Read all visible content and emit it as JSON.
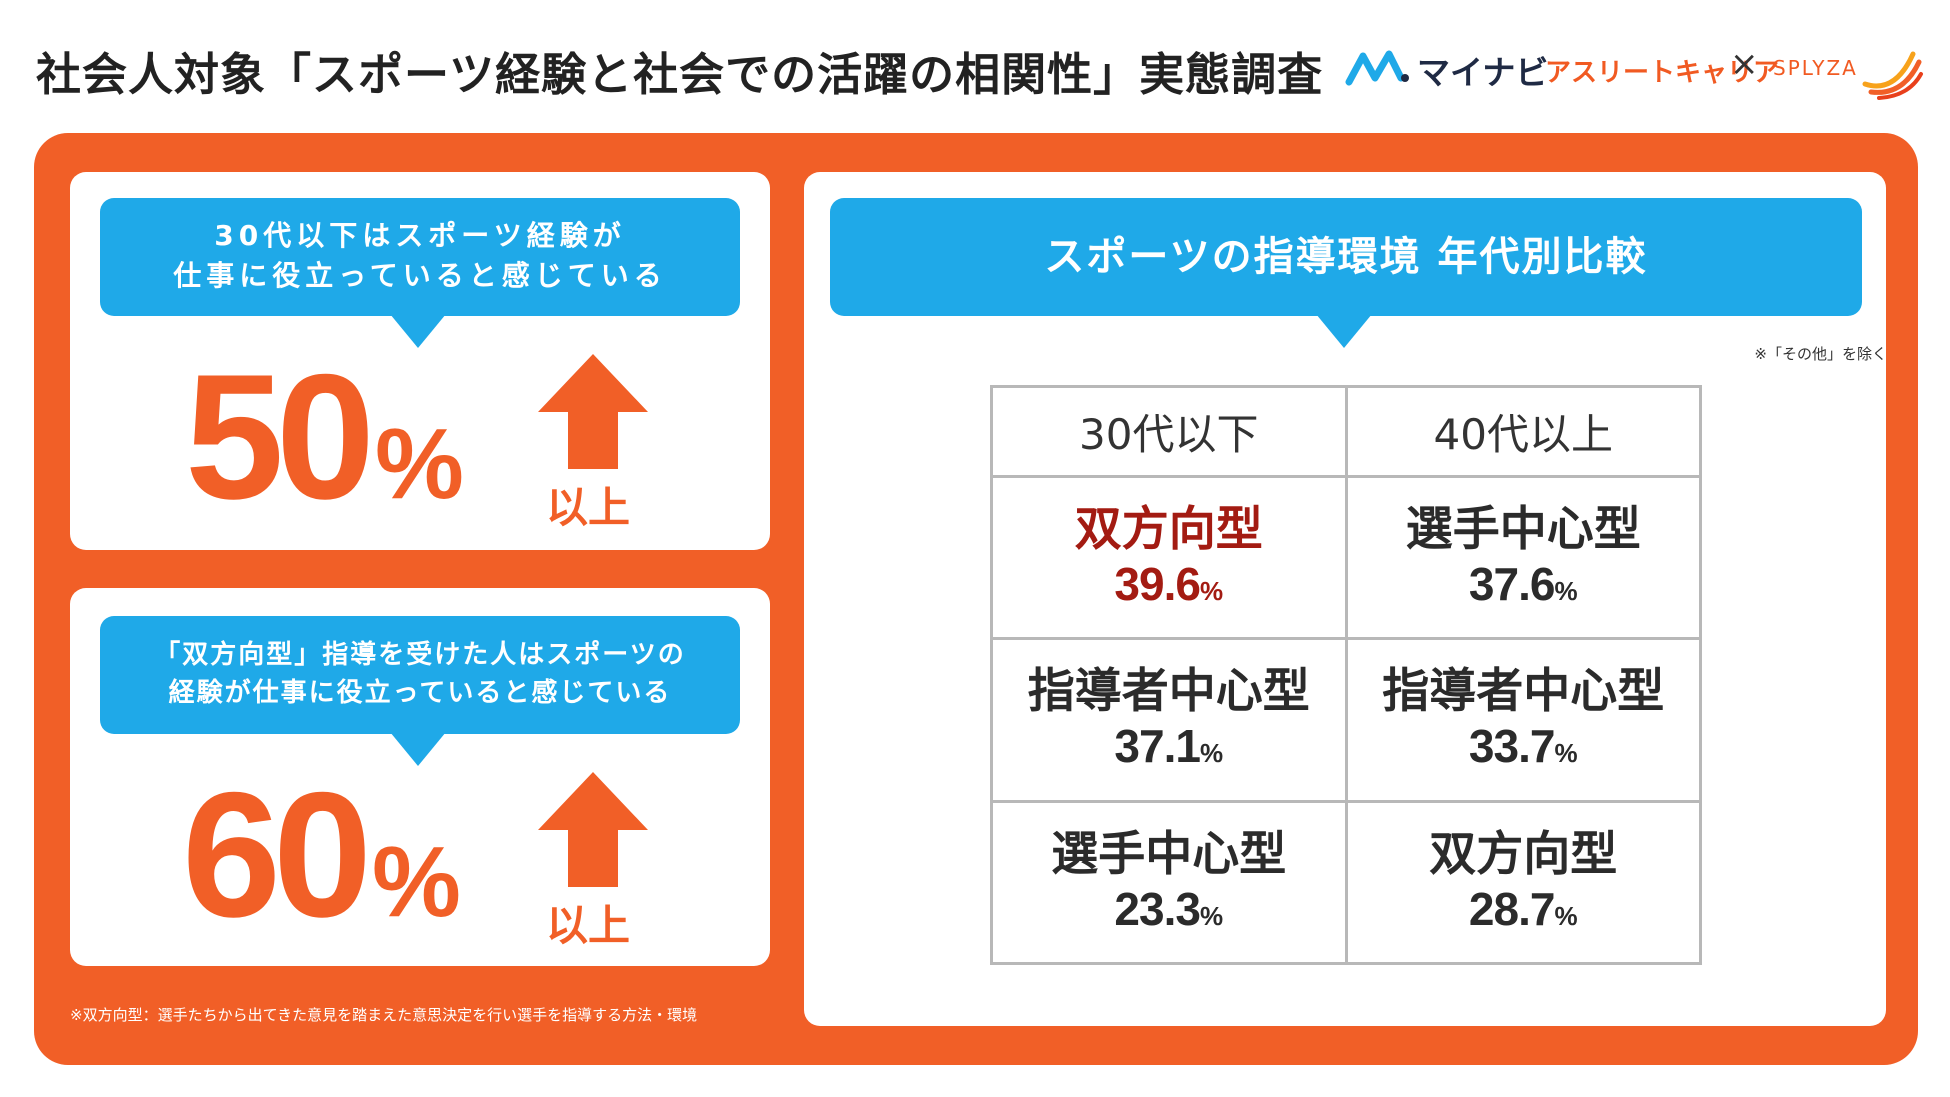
{
  "header": {
    "title": "社会人対象「スポーツ経験と社会での活躍の相関性」実態調査",
    "logo": {
      "mynavi": "マイナビ",
      "athlete_career": "アスリートキャリア",
      "cross": "×",
      "splyza": "SPLYZA"
    }
  },
  "stat_1": {
    "bubble_line1": "30代以下はスポーツ経験が",
    "bubble_line2": "仕事に役立っていると感じている",
    "value": "50",
    "unit": "%",
    "qualifier": "以上"
  },
  "stat_2": {
    "bubble_line1": "「双方向型」指導を受けた人はスポーツの",
    "bubble_line2": "経験が仕事に役立っていると感じている",
    "value": "60",
    "unit": "%",
    "qualifier": "以上"
  },
  "footnote": "※双方向型：選手たちから出てきた意見を踏まえた意思決定を行い選手を指導する方法・環境",
  "comparison": {
    "title": "スポーツの指導環境 年代別比較",
    "note": "※「その他」を除く",
    "columns": [
      "30代以下",
      "40代以上"
    ],
    "rows": [
      [
        {
          "type": "双方向型",
          "value": "39.6",
          "unit": "%"
        },
        {
          "type": "選手中心型",
          "value": "37.6",
          "unit": "%"
        }
      ],
      [
        {
          "type": "指導者中心型",
          "value": "37.1",
          "unit": "%"
        },
        {
          "type": "指導者中心型",
          "value": "33.7",
          "unit": "%"
        }
      ],
      [
        {
          "type": "選手中心型",
          "value": "23.3",
          "unit": "%"
        },
        {
          "type": "双方向型",
          "value": "28.7",
          "unit": "%"
        }
      ]
    ]
  },
  "colors": {
    "accent_orange": "#f15f27",
    "bubble_blue": "#1fa9e8",
    "highlight_red": "#a31b12"
  }
}
